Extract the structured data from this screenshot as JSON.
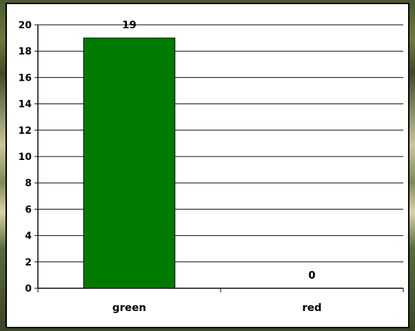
{
  "chart_data": {
    "type": "bar",
    "categories": [
      "green",
      "red"
    ],
    "values": [
      19,
      0
    ],
    "title": "",
    "xlabel": "",
    "ylabel": "",
    "ylim": [
      0,
      20
    ],
    "yticks": [
      "0",
      "2",
      "4",
      "6",
      "8",
      "10",
      "12",
      "14",
      "16",
      "18",
      "20"
    ],
    "data_labels": [
      "19",
      "0"
    ],
    "grid": true,
    "legend": "none",
    "colors": {
      "bar": "#007a00",
      "grid": "#000000",
      "background": "#ffffff"
    }
  }
}
